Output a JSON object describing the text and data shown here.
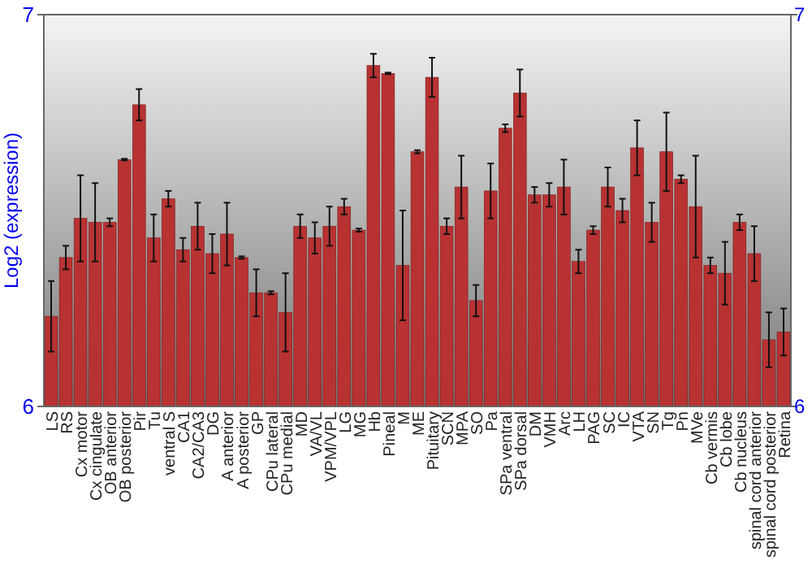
{
  "chart_data": {
    "type": "bar",
    "ylabel": "Log2 (expression)",
    "ylim": [
      6,
      7
    ],
    "yticks": [
      6,
      7
    ],
    "y2lim": [
      6,
      7
    ],
    "y2ticks": [
      6,
      7
    ],
    "color": "#b83232",
    "categories": [
      "LS",
      "RS",
      "Cx motor",
      "Cx cingulate",
      "OB anterior",
      "OB posterior",
      "Pir",
      "Tu",
      "ventral S",
      "CA1",
      "CA2/CA3",
      "DG",
      "A anterior",
      "A posterior",
      "GP",
      "CPu lateral",
      "CPu medial",
      "MD",
      "VA/VL",
      "VPM/VPL",
      "LG",
      "MG",
      "Hb",
      "Pineal",
      "M",
      "ME",
      "Pituitary",
      "SCN",
      "MPA",
      "SO",
      "Pa",
      "SPa ventral",
      "SPa dorsal",
      "DM",
      "VMH",
      "Arc",
      "LH",
      "PAG",
      "SC",
      "IC",
      "VTA",
      "SN",
      "Tg",
      "Pn",
      "MVe",
      "Cb vermis",
      "Cb lobe",
      "Cb nucleus",
      "spinal cord anterior",
      "spinal cord posterior",
      "Retina"
    ],
    "values": [
      6.23,
      6.38,
      6.48,
      6.47,
      6.47,
      6.63,
      6.77,
      6.43,
      6.53,
      6.4,
      6.46,
      6.39,
      6.44,
      6.38,
      6.29,
      6.29,
      6.24,
      6.46,
      6.43,
      6.46,
      6.51,
      6.45,
      6.87,
      6.85,
      6.36,
      6.65,
      6.84,
      6.46,
      6.56,
      6.27,
      6.55,
      6.71,
      6.8,
      6.54,
      6.54,
      6.56,
      6.37,
      6.45,
      6.56,
      6.5,
      6.66,
      6.47,
      6.65,
      6.58,
      6.51,
      6.36,
      6.34,
      6.47,
      6.39,
      6.17,
      6.19
    ],
    "errors": [
      0.09,
      0.03,
      0.11,
      0.1,
      0.01,
      0.002,
      0.04,
      0.06,
      0.02,
      0.03,
      0.06,
      0.05,
      0.08,
      0.003,
      0.06,
      0.004,
      0.1,
      0.03,
      0.04,
      0.05,
      0.02,
      0.004,
      0.03,
      0.002,
      0.14,
      0.004,
      0.05,
      0.02,
      0.08,
      0.04,
      0.07,
      0.01,
      0.06,
      0.02,
      0.03,
      0.07,
      0.03,
      0.01,
      0.05,
      0.03,
      0.07,
      0.05,
      0.1,
      0.01,
      0.13,
      0.02,
      0.08,
      0.02,
      0.07,
      0.07,
      0.06
    ]
  }
}
